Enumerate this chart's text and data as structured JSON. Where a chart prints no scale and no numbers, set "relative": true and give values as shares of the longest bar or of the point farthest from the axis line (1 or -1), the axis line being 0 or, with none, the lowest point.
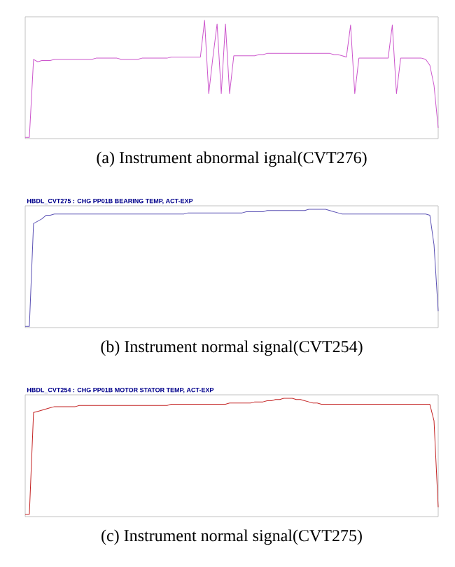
{
  "chart_data": [
    {
      "type": "line",
      "relative": true,
      "color": "#cc55cc",
      "categories": [
        null,
        null,
        null,
        null,
        null,
        null,
        null,
        null,
        null,
        null,
        null,
        null,
        null,
        null,
        null,
        null,
        null,
        null,
        null,
        null,
        null,
        null,
        null,
        null,
        null,
        null,
        null,
        null,
        null,
        null,
        null,
        null,
        null,
        null,
        null,
        null,
        null,
        null,
        null,
        null,
        null,
        null,
        null,
        null,
        null,
        null,
        null,
        null,
        null,
        null,
        null,
        null,
        null,
        null,
        null,
        null,
        null,
        null,
        null,
        null,
        null,
        null,
        null,
        null,
        null,
        null,
        null,
        null,
        null,
        null,
        null,
        null,
        null,
        null,
        null,
        null,
        null,
        null,
        null,
        null,
        null,
        null,
        null,
        null,
        null,
        null,
        null,
        null,
        null,
        null,
        null,
        null,
        null,
        null,
        null,
        null,
        null,
        null,
        null,
        null
      ],
      "values": [
        0.01,
        0.01,
        0.67,
        0.65,
        0.66,
        0.66,
        0.66,
        0.67,
        0.67,
        0.67,
        0.67,
        0.67,
        0.67,
        0.67,
        0.67,
        0.67,
        0.67,
        0.68,
        0.68,
        0.68,
        0.68,
        0.68,
        0.68,
        0.67,
        0.67,
        0.67,
        0.67,
        0.67,
        0.68,
        0.68,
        0.68,
        0.68,
        0.68,
        0.68,
        0.68,
        0.69,
        0.69,
        0.69,
        0.69,
        0.69,
        0.69,
        0.69,
        0.69,
        1.0,
        0.38,
        0.69,
        0.97,
        0.38,
        0.97,
        0.38,
        0.7,
        0.7,
        0.7,
        0.7,
        0.7,
        0.7,
        0.71,
        0.71,
        0.72,
        0.72,
        0.72,
        0.72,
        0.72,
        0.72,
        0.72,
        0.72,
        0.72,
        0.72,
        0.72,
        0.72,
        0.72,
        0.72,
        0.72,
        0.72,
        0.71,
        0.71,
        0.7,
        0.69,
        0.96,
        0.38,
        0.68,
        0.68,
        0.68,
        0.68,
        0.68,
        0.68,
        0.68,
        0.68,
        0.96,
        0.38,
        0.68,
        0.68,
        0.68,
        0.68,
        0.68,
        0.68,
        0.67,
        0.62,
        0.45,
        0.09
      ],
      "annotations": [
        "(a) Instrument abnormal ignal(CVT276)"
      ]
    },
    {
      "type": "line",
      "relative": true,
      "color": "#5a50b4",
      "title": "HBDL_CVT275 : CHG PP01B BEARING TEMP, ACT-EXP",
      "categories": [
        null,
        null,
        null,
        null,
        null,
        null,
        null,
        null,
        null,
        null,
        null,
        null,
        null,
        null,
        null,
        null,
        null,
        null,
        null,
        null,
        null,
        null,
        null,
        null,
        null,
        null,
        null,
        null,
        null,
        null,
        null,
        null,
        null,
        null,
        null,
        null,
        null,
        null,
        null,
        null,
        null,
        null,
        null,
        null,
        null,
        null,
        null,
        null,
        null,
        null,
        null,
        null,
        null,
        null,
        null,
        null,
        null,
        null,
        null,
        null,
        null,
        null,
        null,
        null,
        null,
        null,
        null,
        null,
        null,
        null,
        null,
        null,
        null,
        null,
        null,
        null,
        null,
        null,
        null,
        null,
        null,
        null,
        null,
        null,
        null,
        null,
        null,
        null,
        null,
        null,
        null,
        null,
        null,
        null,
        null,
        null,
        null,
        null,
        null,
        null
      ],
      "values": [
        0.01,
        0.01,
        0.88,
        0.9,
        0.92,
        0.95,
        0.95,
        0.96,
        0.96,
        0.96,
        0.96,
        0.96,
        0.96,
        0.96,
        0.96,
        0.96,
        0.96,
        0.96,
        0.96,
        0.96,
        0.96,
        0.96,
        0.96,
        0.96,
        0.96,
        0.96,
        0.96,
        0.96,
        0.96,
        0.96,
        0.96,
        0.96,
        0.96,
        0.96,
        0.96,
        0.96,
        0.96,
        0.96,
        0.96,
        0.97,
        0.97,
        0.97,
        0.97,
        0.97,
        0.97,
        0.97,
        0.97,
        0.97,
        0.97,
        0.97,
        0.97,
        0.97,
        0.97,
        0.98,
        0.98,
        0.98,
        0.98,
        0.98,
        0.99,
        0.99,
        0.99,
        0.99,
        0.99,
        0.99,
        0.99,
        0.99,
        0.99,
        0.99,
        1.0,
        1.0,
        1.0,
        1.0,
        1.0,
        0.99,
        0.98,
        0.97,
        0.96,
        0.96,
        0.96,
        0.96,
        0.96,
        0.96,
        0.96,
        0.96,
        0.96,
        0.96,
        0.96,
        0.96,
        0.96,
        0.96,
        0.96,
        0.96,
        0.96,
        0.96,
        0.96,
        0.96,
        0.96,
        0.95,
        0.7,
        0.14
      ],
      "annotations": [
        "(b) Instrument normal signal(CVT254)"
      ]
    },
    {
      "type": "line",
      "relative": true,
      "color": "#c42424",
      "title": "HBDL_CVT254 : CHG PP01B MOTOR STATOR TEMP, ACT-EXP",
      "categories": [
        null,
        null,
        null,
        null,
        null,
        null,
        null,
        null,
        null,
        null,
        null,
        null,
        null,
        null,
        null,
        null,
        null,
        null,
        null,
        null,
        null,
        null,
        null,
        null,
        null,
        null,
        null,
        null,
        null,
        null,
        null,
        null,
        null,
        null,
        null,
        null,
        null,
        null,
        null,
        null,
        null,
        null,
        null,
        null,
        null,
        null,
        null,
        null,
        null,
        null,
        null,
        null,
        null,
        null,
        null,
        null,
        null,
        null,
        null,
        null,
        null,
        null,
        null,
        null,
        null,
        null,
        null,
        null,
        null,
        null,
        null,
        null,
        null,
        null,
        null,
        null,
        null,
        null,
        null,
        null,
        null,
        null,
        null,
        null,
        null,
        null,
        null,
        null,
        null,
        null,
        null,
        null,
        null,
        null,
        null,
        null,
        null,
        null,
        null,
        null
      ],
      "values": [
        0.02,
        0.02,
        0.88,
        0.89,
        0.9,
        0.91,
        0.92,
        0.93,
        0.93,
        0.93,
        0.93,
        0.93,
        0.93,
        0.94,
        0.94,
        0.94,
        0.94,
        0.94,
        0.94,
        0.94,
        0.94,
        0.94,
        0.94,
        0.94,
        0.94,
        0.94,
        0.94,
        0.94,
        0.94,
        0.94,
        0.94,
        0.94,
        0.94,
        0.94,
        0.94,
        0.95,
        0.95,
        0.95,
        0.95,
        0.95,
        0.95,
        0.95,
        0.95,
        0.95,
        0.95,
        0.95,
        0.95,
        0.95,
        0.95,
        0.96,
        0.96,
        0.96,
        0.96,
        0.96,
        0.96,
        0.97,
        0.97,
        0.97,
        0.98,
        0.98,
        0.99,
        0.99,
        1.0,
        1.0,
        1.0,
        0.99,
        0.99,
        0.98,
        0.97,
        0.96,
        0.96,
        0.95,
        0.95,
        0.95,
        0.95,
        0.95,
        0.95,
        0.95,
        0.95,
        0.95,
        0.95,
        0.95,
        0.95,
        0.95,
        0.95,
        0.95,
        0.95,
        0.95,
        0.95,
        0.95,
        0.95,
        0.95,
        0.95,
        0.95,
        0.95,
        0.95,
        0.95,
        0.95,
        0.81,
        0.08
      ],
      "annotations": [
        "(c) Instrument normal signal(CVT275)"
      ]
    }
  ]
}
